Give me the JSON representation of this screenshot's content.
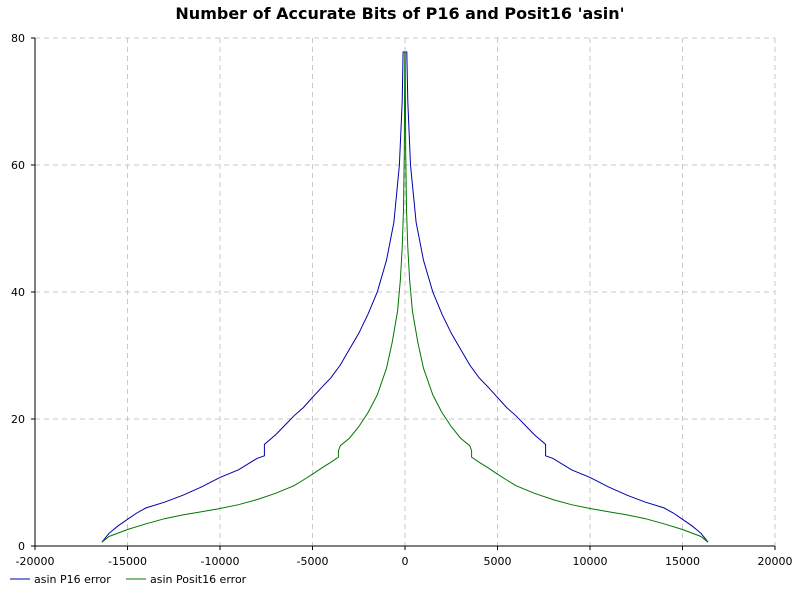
{
  "chart_data": {
    "type": "line",
    "title": "Number of Accurate Bits of P16 and Posit16 'asin'",
    "xlabel": "",
    "ylabel": "",
    "xlim": [
      -20000,
      20000
    ],
    "ylim": [
      0,
      80
    ],
    "x_ticks": [
      -20000,
      -15000,
      -10000,
      -5000,
      0,
      5000,
      10000,
      15000,
      20000
    ],
    "y_ticks": [
      0,
      20,
      40,
      60,
      80
    ],
    "grid": true,
    "legend_position": "bottom-left",
    "series": [
      {
        "name": "asin P16 error",
        "color": "#0000aa",
        "points": [
          [
            16384,
            0.6
          ],
          [
            16000,
            2.0
          ],
          [
            15500,
            3.2
          ],
          [
            15000,
            4.2
          ],
          [
            14500,
            5.2
          ],
          [
            14000,
            6.0
          ],
          [
            13000,
            6.9
          ],
          [
            12000,
            8.0
          ],
          [
            11000,
            9.3
          ],
          [
            10000,
            10.8
          ],
          [
            9000,
            12.0
          ],
          [
            8000,
            13.8
          ],
          [
            7600,
            14.2
          ],
          [
            7600,
            16.0
          ],
          [
            7000,
            17.5
          ],
          [
            6500,
            19.0
          ],
          [
            6000,
            20.5
          ],
          [
            5500,
            21.8
          ],
          [
            5000,
            23.4
          ],
          [
            4500,
            25.0
          ],
          [
            4000,
            26.5
          ],
          [
            3500,
            28.5
          ],
          [
            3000,
            31.0
          ],
          [
            2500,
            33.5
          ],
          [
            2000,
            36.5
          ],
          [
            1500,
            40.0
          ],
          [
            1000,
            45.0
          ],
          [
            600,
            51.0
          ],
          [
            300,
            60.0
          ],
          [
            150,
            70.0
          ],
          [
            100,
            77.8
          ],
          [
            -100,
            77.8
          ],
          [
            -150,
            70.0
          ],
          [
            -300,
            60.0
          ],
          [
            -600,
            51.0
          ],
          [
            -1000,
            45.0
          ],
          [
            -1500,
            40.0
          ],
          [
            -2000,
            36.5
          ],
          [
            -2500,
            33.5
          ],
          [
            -3000,
            31.0
          ],
          [
            -3500,
            28.5
          ],
          [
            -4000,
            26.5
          ],
          [
            -4500,
            25.0
          ],
          [
            -5000,
            23.4
          ],
          [
            -5500,
            21.8
          ],
          [
            -6000,
            20.5
          ],
          [
            -6500,
            19.0
          ],
          [
            -7000,
            17.5
          ],
          [
            -7600,
            16.0
          ],
          [
            -7600,
            14.2
          ],
          [
            -8000,
            13.8
          ],
          [
            -9000,
            12.0
          ],
          [
            -10000,
            10.8
          ],
          [
            -11000,
            9.3
          ],
          [
            -12000,
            8.0
          ],
          [
            -13000,
            6.9
          ],
          [
            -14000,
            6.0
          ],
          [
            -14500,
            5.2
          ],
          [
            -15000,
            4.2
          ],
          [
            -15500,
            3.2
          ],
          [
            -16000,
            2.0
          ],
          [
            -16384,
            0.6
          ]
        ]
      },
      {
        "name": "asin Posit16 error",
        "color": "#007700",
        "points": [
          [
            16384,
            0.6
          ],
          [
            16000,
            1.5
          ],
          [
            15000,
            2.6
          ],
          [
            14000,
            3.5
          ],
          [
            13000,
            4.3
          ],
          [
            12000,
            4.9
          ],
          [
            11000,
            5.4
          ],
          [
            10000,
            5.9
          ],
          [
            9000,
            6.5
          ],
          [
            8000,
            7.3
          ],
          [
            7000,
            8.3
          ],
          [
            6000,
            9.5
          ],
          [
            5500,
            10.4
          ],
          [
            5000,
            11.3
          ],
          [
            4500,
            12.3
          ],
          [
            4000,
            13.2
          ],
          [
            3600,
            14.0
          ],
          [
            3600,
            15.0
          ],
          [
            3500,
            15.8
          ],
          [
            3000,
            17.0
          ],
          [
            2500,
            18.8
          ],
          [
            2000,
            21.0
          ],
          [
            1500,
            23.8
          ],
          [
            1000,
            28.0
          ],
          [
            700,
            32.0
          ],
          [
            400,
            37.0
          ],
          [
            250,
            42.0
          ],
          [
            150,
            47.0
          ],
          [
            80,
            53.0
          ],
          [
            40,
            62.0
          ],
          [
            20,
            72.0
          ],
          [
            10,
            77.8
          ],
          [
            -10,
            77.8
          ],
          [
            -20,
            72.0
          ],
          [
            -40,
            62.0
          ],
          [
            -80,
            53.0
          ],
          [
            -150,
            47.0
          ],
          [
            -250,
            42.0
          ],
          [
            -400,
            37.0
          ],
          [
            -700,
            32.0
          ],
          [
            -1000,
            28.0
          ],
          [
            -1500,
            23.8
          ],
          [
            -2000,
            21.0
          ],
          [
            -2500,
            18.8
          ],
          [
            -3000,
            17.0
          ],
          [
            -3500,
            15.8
          ],
          [
            -3600,
            15.0
          ],
          [
            -3600,
            14.0
          ],
          [
            -4000,
            13.2
          ],
          [
            -4500,
            12.3
          ],
          [
            -5000,
            11.3
          ],
          [
            -5500,
            10.4
          ],
          [
            -6000,
            9.5
          ],
          [
            -7000,
            8.3
          ],
          [
            -8000,
            7.3
          ],
          [
            -9000,
            6.5
          ],
          [
            -10000,
            5.9
          ],
          [
            -11000,
            5.4
          ],
          [
            -12000,
            4.9
          ],
          [
            -13000,
            4.3
          ],
          [
            -14000,
            3.5
          ],
          [
            -15000,
            2.6
          ],
          [
            -16000,
            1.5
          ],
          [
            -16384,
            0.6
          ]
        ]
      }
    ]
  }
}
